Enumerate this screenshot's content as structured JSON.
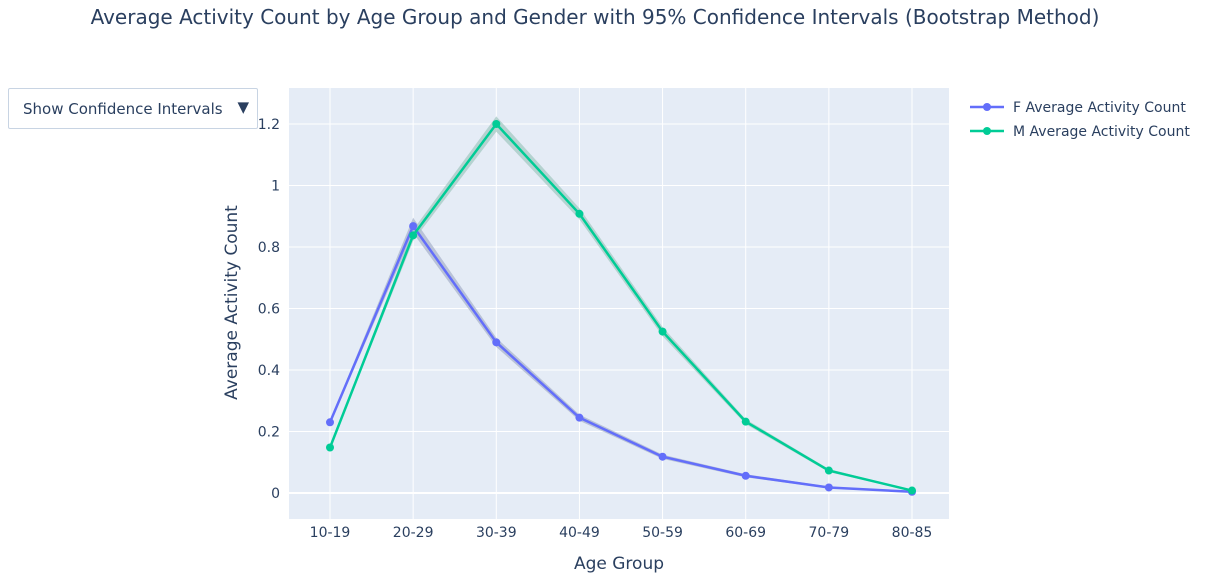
{
  "dropdown": {
    "label": "Show Confidence Intervals",
    "arrow_icon": "triangle-down-icon"
  },
  "chart_data": {
    "type": "line",
    "title": "Average Activity Count by Age Group and Gender with 95% Confidence Intervals (Bootstrap Method)",
    "xlabel": "Age Group",
    "ylabel": "Average Activity Count",
    "categories": [
      "10-19",
      "20-29",
      "30-39",
      "40-49",
      "50-59",
      "60-69",
      "70-79",
      "80-85"
    ],
    "ylim": [
      -0.08,
      1.32
    ],
    "yticks": [
      0,
      0.2,
      0.4,
      0.6,
      0.8,
      1,
      1.2
    ],
    "ytick_labels": [
      "0",
      "0.2",
      "0.4",
      "0.6",
      "0.8",
      "1",
      "1.2"
    ],
    "grid": true,
    "legend_position": "top-right",
    "plot_background": "#e5ecf6",
    "series": [
      {
        "name": "F Average Activity Count",
        "color": "#636efa",
        "band_color": "#aab4cc",
        "values": [
          0.23,
          0.868,
          0.49,
          0.245,
          0.118,
          0.056,
          0.018,
          0.004
        ],
        "ci_lower": [
          0.225,
          0.845,
          0.475,
          0.235,
          0.111,
          0.051,
          0.015,
          0.003
        ],
        "ci_upper": [
          0.235,
          0.895,
          0.505,
          0.255,
          0.125,
          0.061,
          0.021,
          0.005
        ]
      },
      {
        "name": "M Average Activity Count",
        "color": "#00cc96",
        "band_color": "#a4c9c3",
        "values": [
          0.148,
          0.838,
          1.2,
          0.908,
          0.525,
          0.232,
          0.073,
          0.008
        ],
        "ci_lower": [
          0.143,
          0.82,
          1.175,
          0.89,
          0.51,
          0.224,
          0.068,
          0.006
        ],
        "ci_upper": [
          0.153,
          0.856,
          1.225,
          0.926,
          0.54,
          0.24,
          0.078,
          0.01
        ]
      }
    ]
  }
}
